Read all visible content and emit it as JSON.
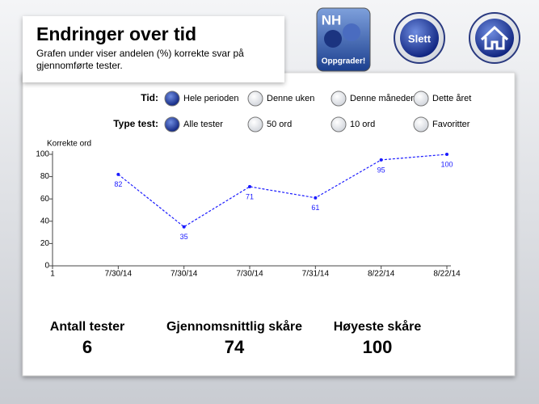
{
  "header": {
    "title": "Endringer over tid",
    "subtitle": "Grafen under viser andelen (%) korrekte svar på gjennomførte tester."
  },
  "buttons": {
    "upgrade": "Oppgrader!",
    "app_logo": "NH",
    "delete": "Slett"
  },
  "filters": [
    {
      "label": "Tid:",
      "options": [
        "Hele perioden",
        "Denne uken",
        "Denne måneden",
        "Dette året"
      ],
      "selected": 0
    },
    {
      "label": "Type test:",
      "options": [
        "Alle tester",
        "50 ord",
        "10 ord",
        "Favoritter"
      ],
      "selected": 0
    }
  ],
  "chart_data": {
    "type": "line",
    "y_label": "Korrekte ord",
    "categories": [
      "1",
      "7/30/14",
      "7/30/14",
      "7/30/14",
      "7/31/14",
      "8/22/14",
      "8/22/14"
    ],
    "series": [
      {
        "name": "Korrekte ord",
        "color": "#1a1aff",
        "values": [
          null,
          82,
          35,
          71,
          61,
          95,
          100
        ]
      }
    ],
    "ylim": [
      0,
      100
    ],
    "yticks": [
      0,
      20,
      40,
      60,
      80,
      100
    ],
    "grid": false
  },
  "stats": [
    {
      "label": "Antall tester",
      "value": 6
    },
    {
      "label": "Gjennomsnittlig skåre",
      "value": 74
    },
    {
      "label": "Høyeste skåre",
      "value": 100
    }
  ]
}
